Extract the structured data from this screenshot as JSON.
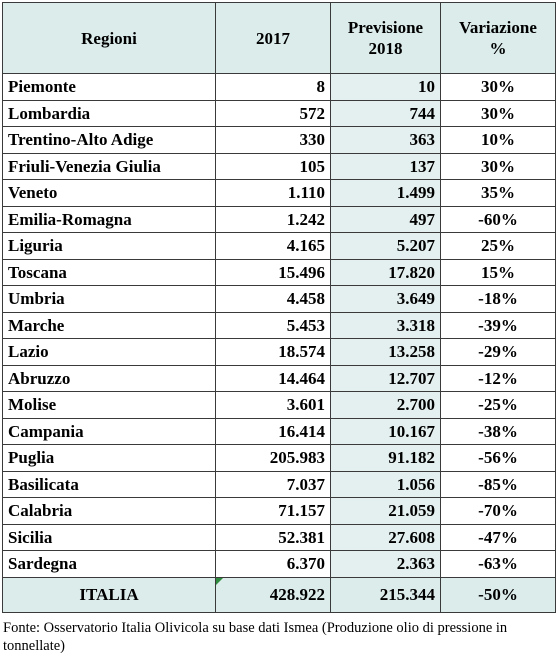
{
  "table": {
    "headers": {
      "region": "Regioni",
      "year": "2017",
      "forecast_line1": "Previsione",
      "forecast_line2": "2018",
      "change_line1": "Variazione",
      "change_line2": "%"
    },
    "rows": [
      {
        "region": "Piemonte",
        "y2017": "8",
        "y2018": "10",
        "change": "30%"
      },
      {
        "region": "Lombardia",
        "y2017": "572",
        "y2018": "744",
        "change": "30%"
      },
      {
        "region": "Trentino-Alto Adige",
        "y2017": "330",
        "y2018": "363",
        "change": "10%"
      },
      {
        "region": "Friuli-Venezia Giulia",
        "y2017": "105",
        "y2018": "137",
        "change": "30%"
      },
      {
        "region": "Veneto",
        "y2017": "1.110",
        "y2018": "1.499",
        "change": "35%"
      },
      {
        "region": "Emilia-Romagna",
        "y2017": "1.242",
        "y2018": "497",
        "change": "-60%"
      },
      {
        "region": "Liguria",
        "y2017": "4.165",
        "y2018": "5.207",
        "change": "25%"
      },
      {
        "region": "Toscana",
        "y2017": "15.496",
        "y2018": "17.820",
        "change": "15%"
      },
      {
        "region": "Umbria",
        "y2017": "4.458",
        "y2018": "3.649",
        "change": "-18%"
      },
      {
        "region": "Marche",
        "y2017": "5.453",
        "y2018": "3.318",
        "change": "-39%"
      },
      {
        "region": "Lazio",
        "y2017": "18.574",
        "y2018": "13.258",
        "change": "-29%"
      },
      {
        "region": "Abruzzo",
        "y2017": "14.464",
        "y2018": "12.707",
        "change": "-12%"
      },
      {
        "region": "Molise",
        "y2017": "3.601",
        "y2018": "2.700",
        "change": "-25%"
      },
      {
        "region": "Campania",
        "y2017": "16.414",
        "y2018": "10.167",
        "change": "-38%"
      },
      {
        "region": "Puglia",
        "y2017": "205.983",
        "y2018": "91.182",
        "change": "-56%"
      },
      {
        "region": "Basilicata",
        "y2017": "7.037",
        "y2018": "1.056",
        "change": "-85%"
      },
      {
        "region": "Calabria",
        "y2017": "71.157",
        "y2018": "21.059",
        "change": "-70%"
      },
      {
        "region": "Sicilia",
        "y2017": "52.381",
        "y2018": "27.608",
        "change": "-47%"
      },
      {
        "region": "Sardegna",
        "y2017": "6.370",
        "y2018": "2.363",
        "change": "-63%"
      }
    ],
    "total": {
      "region": "ITALIA",
      "y2017": "428.922",
      "y2018": "215.344",
      "change": "-50%"
    }
  },
  "source_note": "Fonte: Osservatorio Italia Olivicola su base dati Ismea (Produzione olio di pressione in tonnellate)",
  "colors": {
    "header_fill": "#dbeceb",
    "forecast_column_fill": "#e4f0ef",
    "border": "#3a3a3a",
    "corner_marker": "#2e8b3e"
  }
}
